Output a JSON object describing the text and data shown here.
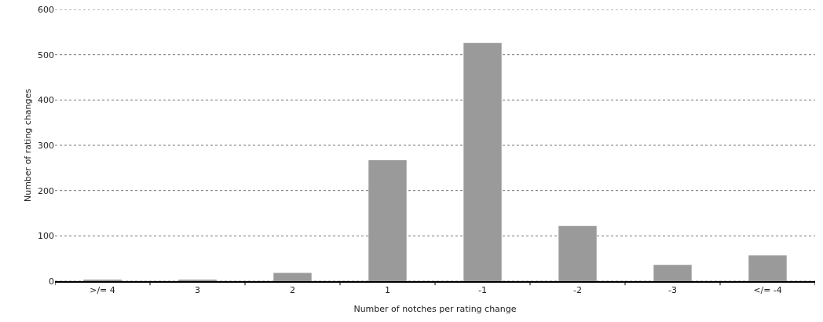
{
  "chart_data": {
    "type": "bar",
    "xlabel": "Number of notches per rating change",
    "ylabel": "Number of rating changes",
    "categories": [
      ">/= 4",
      "3",
      "2",
      "1",
      "-1",
      "-2",
      "-3",
      "</= -4"
    ],
    "values": [
      2,
      2,
      18,
      267,
      526,
      122,
      36,
      57
    ],
    "color": "#9a9a9a",
    "ylim": [
      0,
      600
    ],
    "yticks": [
      0,
      100,
      200,
      300,
      400,
      500,
      600
    ],
    "grid": "y"
  }
}
